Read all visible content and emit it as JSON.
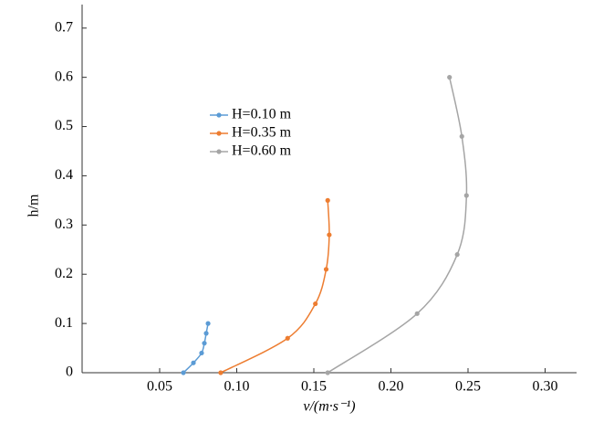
{
  "chart_data": {
    "type": "line",
    "x_label": "v/(m·s⁻¹)",
    "y_label": "h/m",
    "xlim": [
      0,
      0.32
    ],
    "ylim": [
      0,
      0.75
    ],
    "xticks": [
      {
        "value": 0.05,
        "label": "0.05"
      },
      {
        "value": 0.1,
        "label": "0.10"
      },
      {
        "value": 0.15,
        "label": "0.15"
      },
      {
        "value": 0.2,
        "label": "0.20"
      },
      {
        "value": 0.25,
        "label": "0.25"
      },
      {
        "value": 0.3,
        "label": "0.30"
      }
    ],
    "yticks": [
      0,
      0.1,
      0.2,
      0.3,
      0.4,
      0.5,
      0.6,
      0.7
    ],
    "series": [
      {
        "name": "H=0.10 m",
        "color": "#5b9bd5",
        "x": [
          0.0654,
          0.0719,
          0.0772,
          0.079,
          0.0802,
          0.0814
        ],
        "values": [
          0,
          0.02,
          0.04,
          0.06,
          0.08,
          0.1
        ]
      },
      {
        "name": "H=0.35 m",
        "color": "#ed7d31",
        "x": [
          0.0896,
          0.133,
          0.151,
          0.158,
          0.16,
          0.159
        ],
        "values": [
          0,
          0.07,
          0.14,
          0.21,
          0.28,
          0.35
        ]
      },
      {
        "name": "H=0.60 m",
        "color": "#a5a5a5",
        "x": [
          0.159,
          0.217,
          0.243,
          0.249,
          0.246,
          0.238
        ],
        "values": [
          0,
          0.12,
          0.24,
          0.36,
          0.48,
          0.6
        ]
      }
    ]
  }
}
